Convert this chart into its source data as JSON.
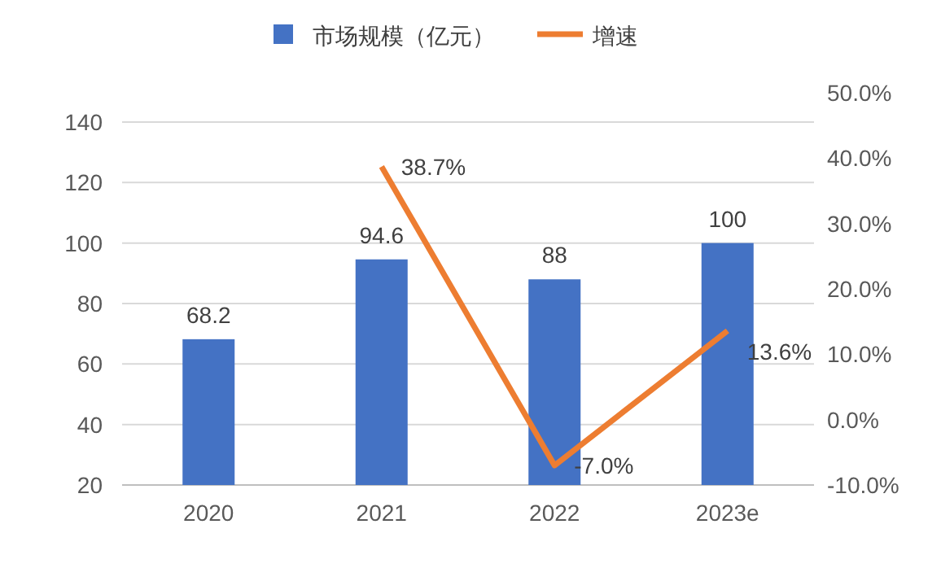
{
  "chart_data": {
    "type": "bar",
    "categories": [
      "2020",
      "2021",
      "2022",
      "2023e"
    ],
    "series": [
      {
        "name": "市场规模（亿元）",
        "color": "#4472c4",
        "values": [
          68.2,
          94.6,
          88,
          100
        ],
        "value_labels": [
          "68.2",
          "94.6",
          "88",
          "100"
        ]
      },
      {
        "name": "增速",
        "type": "line",
        "axis": "y2",
        "color": "#ed7d31",
        "values": [
          null,
          38.7,
          -7.0,
          13.6
        ],
        "value_labels": [
          null,
          "38.7%",
          "-7.0%",
          "13.6%"
        ]
      }
    ],
    "ylim": [
      20,
      140
    ],
    "yticks": [
      20,
      40,
      60,
      80,
      100,
      120,
      140
    ],
    "y2lim": [
      -10,
      50
    ],
    "y2ticks": [
      {
        "value": -10,
        "label": "-10.0%"
      },
      {
        "value": 0,
        "label": "0.0%"
      },
      {
        "value": 10,
        "label": "10.0%"
      },
      {
        "value": 20,
        "label": "20.0%"
      },
      {
        "value": 30,
        "label": "30.0%"
      },
      {
        "value": 40,
        "label": "40.0%"
      },
      {
        "value": 50,
        "label": "50.0%"
      }
    ],
    "grid": "y",
    "legend": "top",
    "marker": "none",
    "line_style": "solid"
  }
}
